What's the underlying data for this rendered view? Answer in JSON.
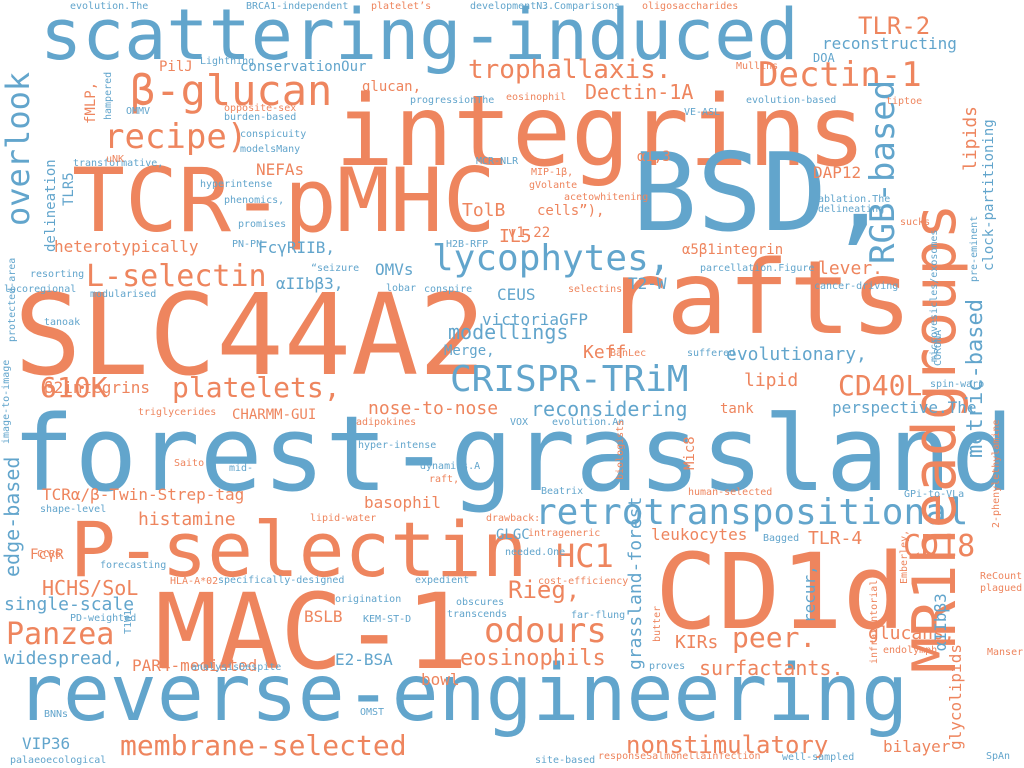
{
  "colors": {
    "orange": "#ee855e",
    "blue": "#62a5cc"
  },
  "words": [
    {
      "text": "forest-grassland",
      "color": "blue"
    },
    {
      "text": "reverse-engineering",
      "color": "blue"
    },
    {
      "text": "scattering-induced",
      "color": "blue"
    },
    {
      "text": "integrins",
      "color": "orange"
    },
    {
      "text": "SLC44A2",
      "color": "orange"
    },
    {
      "text": "MAC-1",
      "color": "orange"
    },
    {
      "text": "CD1d",
      "color": "orange"
    },
    {
      "text": "BSD,",
      "color": "blue"
    },
    {
      "text": "TCR-pMHC",
      "color": "orange"
    },
    {
      "text": "rafts",
      "color": "orange"
    },
    {
      "text": "P-selectin",
      "color": "orange"
    },
    {
      "text": "retrotranspositional",
      "color": "blue"
    },
    {
      "text": "CRISPR-TRiM",
      "color": "blue"
    },
    {
      "text": "MR1headgroups",
      "color": "orange"
    },
    {
      "text": "β-glucan",
      "color": "orange"
    },
    {
      "text": "Dectin-1",
      "color": "orange"
    },
    {
      "text": "lycophytes,",
      "color": "blue"
    },
    {
      "text": "RGB-based",
      "color": "blue"
    },
    {
      "text": "overlook",
      "color": "blue"
    },
    {
      "text": "membrane-selected",
      "color": "orange"
    },
    {
      "text": "odours",
      "color": "orange"
    },
    {
      "text": "recipe)",
      "color": "orange"
    },
    {
      "text": "Panzea",
      "color": "orange"
    },
    {
      "text": "L-selectin",
      "color": "orange"
    },
    {
      "text": "trophallaxis.",
      "color": "orange"
    },
    {
      "text": "610K",
      "color": "orange"
    },
    {
      "text": "platelets,",
      "color": "orange"
    },
    {
      "text": "peer.",
      "color": "orange"
    },
    {
      "text": "CD18",
      "color": "orange"
    },
    {
      "text": "CD40L",
      "color": "orange"
    },
    {
      "text": "HC1",
      "color": "orange"
    },
    {
      "text": "TLR-2",
      "color": "orange"
    },
    {
      "text": "nonstimulatory",
      "color": "orange"
    },
    {
      "text": "metric-based",
      "color": "blue"
    },
    {
      "text": "edge-based",
      "color": "blue"
    },
    {
      "text": "Rieg,",
      "color": "orange"
    },
    {
      "text": "eosinophils",
      "color": "orange"
    },
    {
      "text": "evolutionary,",
      "color": "blue"
    },
    {
      "text": "reconsidering",
      "color": "blue"
    },
    {
      "text": "histamine",
      "color": "orange"
    },
    {
      "text": "HCHS/SoL",
      "color": "orange"
    },
    {
      "text": "modellings",
      "color": "blue"
    },
    {
      "text": "surfactants.",
      "color": "orange"
    },
    {
      "text": "Dectin-1A",
      "color": "orange"
    },
    {
      "text": "grassland-forest",
      "color": "blue"
    },
    {
      "text": "single-scale",
      "color": "blue"
    },
    {
      "text": "widespread,",
      "color": "blue"
    },
    {
      "text": "perspective.The",
      "color": "blue"
    },
    {
      "text": "reconstructing",
      "color": "blue"
    },
    {
      "text": "TCRα/β-Twin-Strep-tag",
      "color": "orange"
    },
    {
      "text": "glucans,",
      "color": "orange"
    },
    {
      "text": "nose-to-nose",
      "color": "orange"
    },
    {
      "text": "lipid",
      "color": "orange"
    },
    {
      "text": "lipids",
      "color": "orange"
    },
    {
      "text": "lever.",
      "color": "orange"
    },
    {
      "text": "TolB",
      "color": "orange"
    },
    {
      "text": "IL5",
      "color": "orange"
    },
    {
      "text": "Keff",
      "color": "orange"
    },
    {
      "text": "KIRs",
      "color": "orange"
    },
    {
      "text": "recur,",
      "color": "blue"
    },
    {
      "text": "αIIbβ3",
      "color": "blue"
    },
    {
      "text": "glycolipids",
      "color": "orange"
    },
    {
      "text": "TLR-4",
      "color": "orange"
    },
    {
      "text": "leukocytes",
      "color": "orange"
    },
    {
      "text": "basophil",
      "color": "orange"
    },
    {
      "text": "bilayer",
      "color": "orange"
    },
    {
      "text": "VIP36",
      "color": "blue"
    },
    {
      "text": "bowl",
      "color": "orange"
    },
    {
      "text": "E2-BSA",
      "color": "blue"
    },
    {
      "text": "BSLB",
      "color": "orange"
    },
    {
      "text": "CEUS",
      "color": "blue"
    },
    {
      "text": "T2-W",
      "color": "blue"
    },
    {
      "text": "PAR4-mediated",
      "color": "orange"
    },
    {
      "text": "β2integrins",
      "color": "orange"
    },
    {
      "text": "heterotypically",
      "color": "orange"
    },
    {
      "text": "FcγRIIB,",
      "color": "blue"
    },
    {
      "text": "αIIbβ3,",
      "color": "blue"
    },
    {
      "text": "OMVs",
      "color": "blue"
    },
    {
      "text": "victoriaGFP",
      "color": "blue"
    },
    {
      "text": "NEFAs",
      "color": "orange"
    },
    {
      "text": "DAP12",
      "color": "orange"
    },
    {
      "text": "conservationOur",
      "color": "blue"
    },
    {
      "text": "glucan,",
      "color": "orange"
    },
    {
      "text": "CHARMM-GUI",
      "color": "orange"
    },
    {
      "text": "FcγR",
      "color": "orange"
    },
    {
      "text": "GLGC",
      "color": "blue"
    },
    {
      "text": "Merge,",
      "color": "blue"
    },
    {
      "text": "Mic8",
      "color": "orange"
    },
    {
      "text": "v1.22",
      "color": "orange"
    },
    {
      "text": "cells”),",
      "color": "orange"
    },
    {
      "text": "α5β1integrin",
      "color": "orange"
    },
    {
      "text": "fMLP,",
      "color": "orange"
    },
    {
      "text": "PilJ",
      "color": "orange"
    },
    {
      "text": "delineation",
      "color": "blue"
    },
    {
      "text": "TLR5",
      "color": "blue"
    },
    {
      "text": "tank",
      "color": "orange"
    },
    {
      "text": "clock-partitioning",
      "color": "blue"
    },
    {
      "text": "α1,3",
      "color": "orange"
    },
    {
      "text": "DOA",
      "color": "blue"
    },
    {
      "text": "evolution.The",
      "color": "blue"
    },
    {
      "text": "BRCA1-independent",
      "color": "blue"
    },
    {
      "text": "platelet’s",
      "color": "orange"
    },
    {
      "text": "developmentN.",
      "color": "blue"
    },
    {
      "text": "3.Comparisons",
      "color": "blue"
    },
    {
      "text": "oligosaccharides",
      "color": "orange"
    },
    {
      "text": "Lightning",
      "color": "blue"
    },
    {
      "text": "Mullins",
      "color": "orange"
    },
    {
      "text": "hampered",
      "color": "blue"
    },
    {
      "text": "opposite-sex",
      "color": "orange"
    },
    {
      "text": "OMMV",
      "color": "blue"
    },
    {
      "text": "burden-based",
      "color": "blue"
    },
    {
      "text": "progressionThe",
      "color": "blue"
    },
    {
      "text": "eosinophil",
      "color": "orange"
    },
    {
      "text": "evolution-based",
      "color": "blue"
    },
    {
      "text": "tiptoe",
      "color": "orange"
    },
    {
      "text": "conspicuity",
      "color": "blue"
    },
    {
      "text": "modelsMany",
      "color": "blue"
    },
    {
      "text": "VE-ASL",
      "color": "blue"
    },
    {
      "text": "transformative,",
      "color": "blue"
    },
    {
      "text": "hyperintense",
      "color": "blue"
    },
    {
      "text": "MIP-1β,",
      "color": "orange"
    },
    {
      "text": "MCR-NLR",
      "color": "blue"
    },
    {
      "text": "gVolante",
      "color": "orange"
    },
    {
      "text": "acetowhitening",
      "color": "orange"
    },
    {
      "text": "uNK",
      "color": "orange"
    },
    {
      "text": "phenomics,",
      "color": "blue"
    },
    {
      "text": "promises",
      "color": "blue"
    },
    {
      "text": "ablation.The",
      "color": "blue"
    },
    {
      "text": "delineating",
      "color": "blue"
    },
    {
      "text": "sucks",
      "color": "orange"
    },
    {
      "text": "pre-eminent",
      "color": "blue"
    },
    {
      "text": "microvesicles/exosomes",
      "color": "blue"
    },
    {
      "text": "protected-area",
      "color": "blue"
    },
    {
      "text": "PN-PN",
      "color": "blue"
    },
    {
      "text": "H2B-RFP",
      "color": "blue"
    },
    {
      "text": "resorting",
      "color": "blue"
    },
    {
      "text": "“seizure",
      "color": "blue"
    },
    {
      "text": "parcellation.Figure",
      "color": "blue"
    },
    {
      "text": "locoregional",
      "color": "blue"
    },
    {
      "text": "lobar",
      "color": "blue"
    },
    {
      "text": "conspire",
      "color": "blue"
    },
    {
      "text": "selectins",
      "color": "orange"
    },
    {
      "text": "cancer-driving",
      "color": "blue"
    },
    {
      "text": "modularised",
      "color": "blue"
    },
    {
      "text": "image-to-image",
      "color": "blue"
    },
    {
      "text": "tanoak",
      "color": "blue"
    },
    {
      "text": "BanLec",
      "color": "orange"
    },
    {
      "text": "suffered",
      "color": "blue"
    },
    {
      "text": "CORONA",
      "color": "blue"
    },
    {
      "text": "spin-warp",
      "color": "blue"
    },
    {
      "text": "triglycerides",
      "color": "orange"
    },
    {
      "text": "adipokines",
      "color": "orange"
    },
    {
      "text": "VOX",
      "color": "blue"
    },
    {
      "text": "evolution.An",
      "color": "blue"
    },
    {
      "text": "hyper-intense",
      "color": "blue"
    },
    {
      "text": "mid-",
      "color": "blue"
    },
    {
      "text": "Saito",
      "color": "orange"
    },
    {
      "text": "dynamics.A",
      "color": "blue"
    },
    {
      "text": "raft,",
      "color": "orange"
    },
    {
      "text": "biologists",
      "color": "orange"
    },
    {
      "text": "2-phenylethylamine",
      "color": "orange"
    },
    {
      "text": "shape-level",
      "color": "blue"
    },
    {
      "text": "Beatrix",
      "color": "blue"
    },
    {
      "text": "human-selected",
      "color": "orange"
    },
    {
      "text": "GPi-to-VLa",
      "color": "blue"
    },
    {
      "text": "lipid-water",
      "color": "orange"
    },
    {
      "text": "drawback:",
      "color": "orange"
    },
    {
      "text": "intrageneric",
      "color": "orange"
    },
    {
      "text": "Bagged",
      "color": "blue"
    },
    {
      "text": "CCR6",
      "color": "orange"
    },
    {
      "text": "needed.One",
      "color": "blue"
    },
    {
      "text": "Emberley,",
      "color": "orange"
    },
    {
      "text": "forecasting",
      "color": "blue"
    },
    {
      "text": "cost-efficiency",
      "color": "orange"
    },
    {
      "text": "HLA-A*02",
      "color": "orange"
    },
    {
      "text": "specifically-designed",
      "color": "blue"
    },
    {
      "text": "expedient",
      "color": "blue"
    },
    {
      "text": "ReCount",
      "color": "orange"
    },
    {
      "text": "plagued",
      "color": "orange"
    },
    {
      "text": "origination",
      "color": "blue"
    },
    {
      "text": "obscures",
      "color": "blue"
    },
    {
      "text": "PD-weighted",
      "color": "blue"
    },
    {
      "text": "transcends",
      "color": "blue"
    },
    {
      "text": "far-flung",
      "color": "blue"
    },
    {
      "text": "infratentorial",
      "color": "orange"
    },
    {
      "text": "KEM-ST-D",
      "color": "blue"
    },
    {
      "text": "T1W1",
      "color": "blue"
    },
    {
      "text": "butter",
      "color": "orange"
    },
    {
      "text": "endolymph",
      "color": "orange"
    },
    {
      "text": "Manser",
      "color": "orange"
    },
    {
      "text": "proves",
      "color": "blue"
    },
    {
      "text": "analysisDespite",
      "color": "blue"
    },
    {
      "text": "BNNs",
      "color": "blue"
    },
    {
      "text": "OMST",
      "color": "blue"
    },
    {
      "text": "palaeoecological",
      "color": "blue"
    },
    {
      "text": "site-based",
      "color": "blue"
    },
    {
      "text": "responseSalmonellainfection",
      "color": "orange"
    },
    {
      "text": "well-sampled",
      "color": "blue"
    },
    {
      "text": "SpAn",
      "color": "blue"
    }
  ]
}
